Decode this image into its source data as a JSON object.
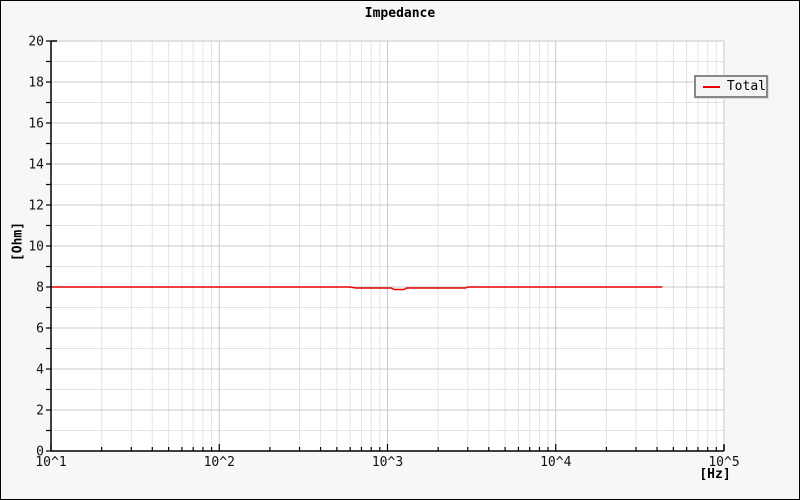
{
  "window": {
    "background": "#f7f7f7",
    "border_color": "#000000"
  },
  "chart_data": {
    "type": "line",
    "title": "Impedance",
    "x_axis": {
      "scale": "log",
      "min": 10,
      "max": 100000,
      "unit_label": "[Hz]",
      "tick_labels": [
        "10^1",
        "10^2",
        "10^3",
        "10^4",
        "10^5"
      ]
    },
    "y_axis": {
      "min": 0,
      "max": 20,
      "major_step": 2,
      "minor_step": 1,
      "unit_label": "[Ohm]",
      "tick_labels": [
        "0",
        "2",
        "4",
        "6",
        "8",
        "10",
        "12",
        "14",
        "16",
        "18",
        "20"
      ]
    },
    "grid": {
      "minor_color": "#e4e4e4",
      "major_color": "#c9c9c9",
      "plot_background": "#ffffff",
      "axis_color": "#000000"
    },
    "legend": {
      "position": "top-right",
      "entries": [
        "Total"
      ]
    },
    "series": [
      {
        "name": "Total",
        "color": "#e60000",
        "points": [
          [
            10,
            8.0
          ],
          [
            600,
            8.0
          ],
          [
            650,
            7.95
          ],
          [
            1050,
            7.95
          ],
          [
            1100,
            7.88
          ],
          [
            1250,
            7.88
          ],
          [
            1300,
            7.95
          ],
          [
            2900,
            7.95
          ],
          [
            3000,
            8.0
          ],
          [
            43000,
            8.0
          ]
        ]
      }
    ]
  }
}
